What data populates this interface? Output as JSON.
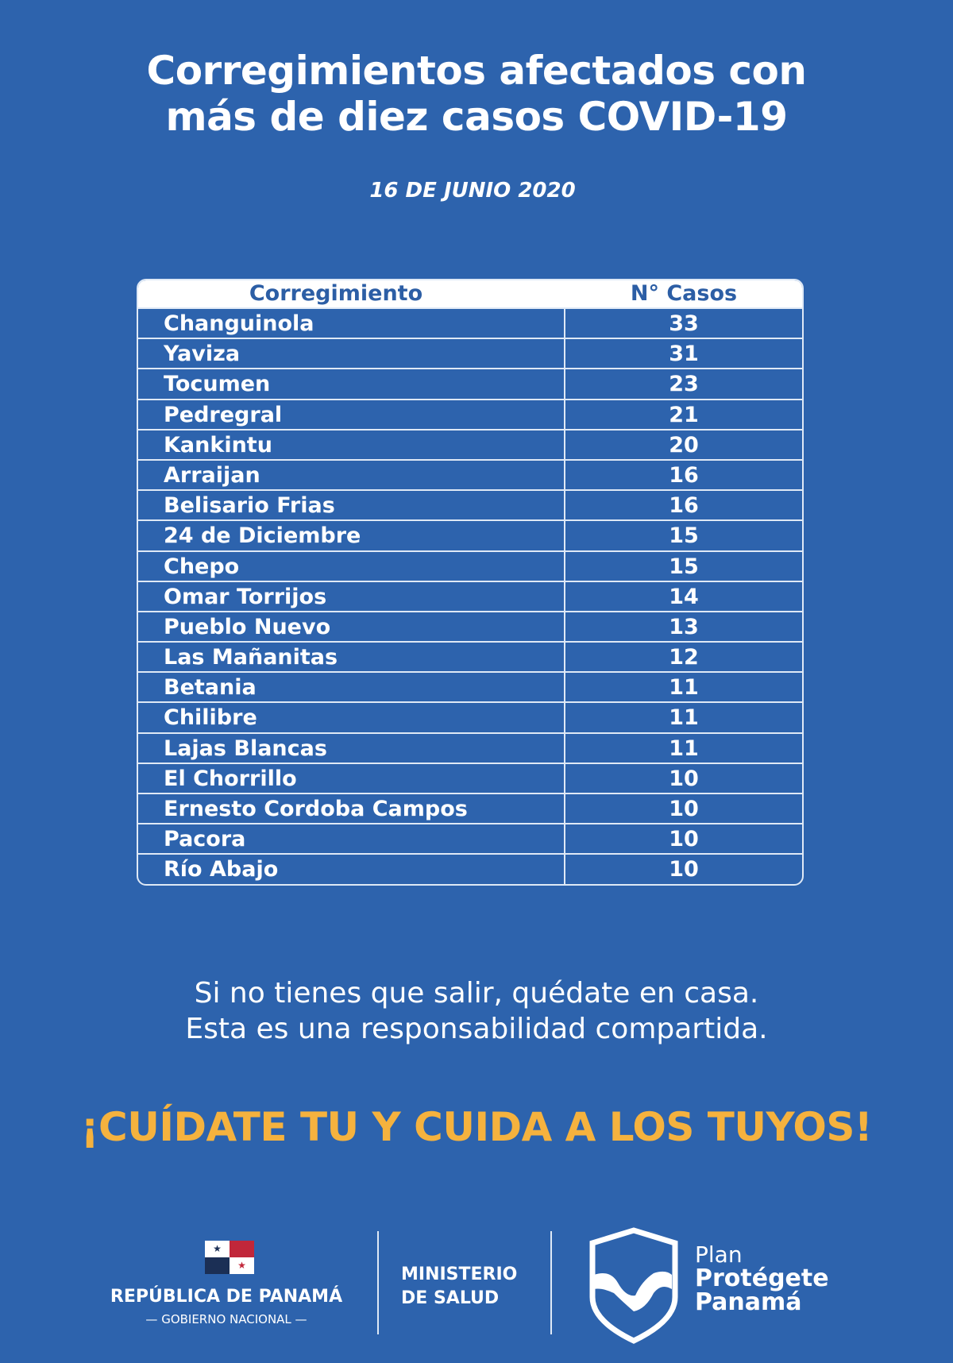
{
  "title": {
    "line1": "Corregimientos afectados con",
    "line2": "más de diez casos COVID-19"
  },
  "date": "16 DE JUNIO 2020",
  "table": {
    "headers": [
      "Corregimiento",
      "N° Casos"
    ],
    "rows": [
      [
        "Changuinola",
        "33"
      ],
      [
        "Yaviza",
        "31"
      ],
      [
        "Tocumen",
        "23"
      ],
      [
        "Pedregral",
        "21"
      ],
      [
        "Kankintu",
        "20"
      ],
      [
        "Arraijan",
        "16"
      ],
      [
        "Belisario Frias",
        "16"
      ],
      [
        "24 de Diciembre",
        "15"
      ],
      [
        "Chepo",
        "15"
      ],
      [
        "Omar Torrijos",
        "14"
      ],
      [
        "Pueblo Nuevo",
        "13"
      ],
      [
        "Las Mañanitas",
        "12"
      ],
      [
        "Betania",
        "11"
      ],
      [
        "Chilibre",
        "11"
      ],
      [
        "Lajas Blancas",
        "11"
      ],
      [
        "El Chorrillo",
        "10"
      ],
      [
        "Ernesto Cordoba Campos",
        "10"
      ],
      [
        "Pacora",
        "10"
      ],
      [
        "Río Abajo",
        "10"
      ]
    ]
  },
  "message": {
    "line1": "Si no tienes que salir, quédate en casa.",
    "line2": "Esta es una responsabilidad compartida."
  },
  "cta": "¡CUÍDATE TU Y CUIDA A LOS TUYOS!",
  "footer": {
    "republica": "REPÚBLICA DE PANAMÁ",
    "gobierno": "— GOBIERNO NACIONAL —",
    "ministerio1": "MINISTERIO",
    "ministerio2": "DE SALUD",
    "plan1": "Plan",
    "plan2": "Protégete",
    "plan3": "Panamá"
  },
  "colors": {
    "background": "#2d63ad",
    "accent": "#f5b23e",
    "header_text": "#2c5ea5"
  }
}
